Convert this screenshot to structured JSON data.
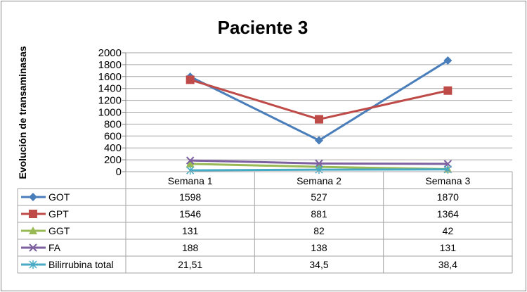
{
  "chart_data": {
    "type": "line",
    "title": "Paciente 3",
    "ylabel": "Evolución de transaminasas",
    "xlabel": "",
    "categories": [
      "Semana 1",
      "Semana 2",
      "Semana 3"
    ],
    "ylim": [
      0,
      2000
    ],
    "yticks": [
      0,
      200,
      400,
      600,
      800,
      1000,
      1200,
      1400,
      1600,
      1800,
      2000
    ],
    "grid": true,
    "legend": "data-table",
    "series": [
      {
        "name": "GOT",
        "color": "#4a7ebb",
        "marker": "diamond",
        "values": [
          1598,
          527,
          1870
        ],
        "labels": [
          "1598",
          "527",
          "1870"
        ]
      },
      {
        "name": "GPT",
        "color": "#be4b48",
        "marker": "square",
        "values": [
          1546,
          881,
          1364
        ],
        "labels": [
          "1546",
          "881",
          "1364"
        ]
      },
      {
        "name": "GGT",
        "color": "#98b954",
        "marker": "triangle",
        "values": [
          131,
          82,
          42
        ],
        "labels": [
          "131",
          "82",
          "42"
        ]
      },
      {
        "name": "FA",
        "color": "#7d60a0",
        "marker": "x",
        "values": [
          188,
          138,
          131
        ],
        "labels": [
          "188",
          "138",
          "131"
        ]
      },
      {
        "name": "Bilirrubina total",
        "color": "#46aac5",
        "marker": "star",
        "values": [
          21.51,
          34.5,
          38.4
        ],
        "labels": [
          "21,51",
          "34,5",
          "38,4"
        ]
      }
    ]
  }
}
